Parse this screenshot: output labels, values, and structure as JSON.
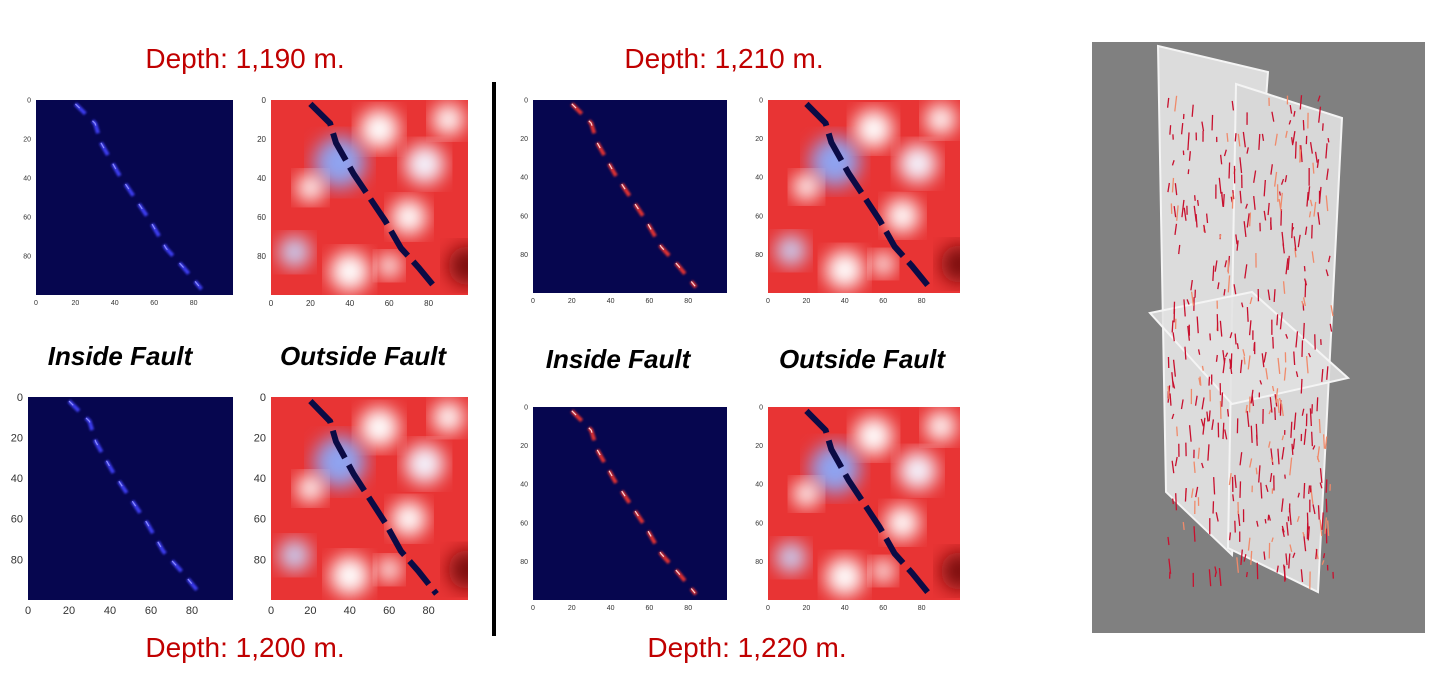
{
  "groups": [
    {
      "top_depth": "Depth: 1,190 m.",
      "bottom_depth": "Depth: 1,200 m.",
      "inside_label": "Inside Fault",
      "outside_label": "Outside Fault"
    },
    {
      "top_depth": "Depth: 1,210 m.",
      "bottom_depth": "Depth: 1,220 m.",
      "inside_label": "Inside Fault",
      "outside_label": "Outside Fault"
    }
  ],
  "panel_ticks": [
    0,
    20,
    40,
    60,
    80
  ]
}
